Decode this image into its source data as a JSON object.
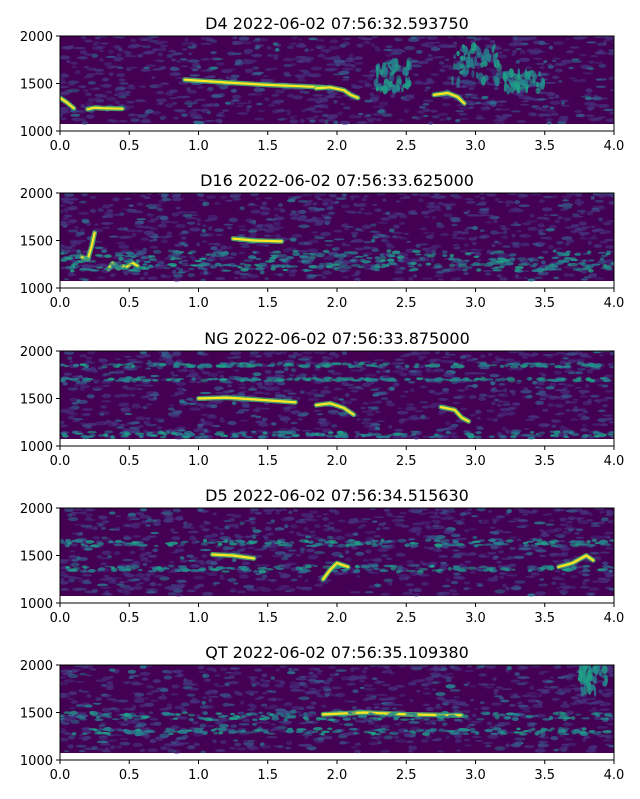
{
  "chart_data": [
    {
      "type": "heatmap",
      "title": "D4 2022-06-02 07:56:32.593750",
      "xlabel": "",
      "ylabel": "",
      "xlim": [
        0.0,
        4.0
      ],
      "ylim": [
        1000,
        2000
      ],
      "x_ticks": [
        "0.0",
        "0.5",
        "1.0",
        "1.5",
        "2.0",
        "2.5",
        "3.0",
        "3.5",
        "4.0"
      ],
      "y_ticks": [
        "1000",
        "1500",
        "2000"
      ],
      "colormap": "viridis",
      "features": [
        {
          "kind": "trace",
          "points": [
            [
              0.2,
              1230
            ],
            [
              0.25,
              1245
            ],
            [
              0.3,
              1240
            ],
            [
              0.45,
              1235
            ]
          ]
        },
        {
          "kind": "trace",
          "points": [
            [
              0.9,
              1540
            ],
            [
              1.2,
              1510
            ],
            [
              1.5,
              1485
            ],
            [
              1.75,
              1470
            ],
            [
              1.9,
              1460
            ]
          ]
        },
        {
          "kind": "trace",
          "points": [
            [
              1.85,
              1450
            ],
            [
              1.95,
              1460
            ],
            [
              2.05,
              1430
            ],
            [
              2.1,
              1380
            ],
            [
              2.15,
              1350
            ]
          ]
        },
        {
          "kind": "trace",
          "points": [
            [
              2.7,
              1380
            ],
            [
              2.8,
              1400
            ],
            [
              2.87,
              1360
            ],
            [
              2.92,
              1290
            ]
          ]
        },
        {
          "kind": "trace",
          "points": [
            [
              0.0,
              1350
            ],
            [
              0.05,
              1300
            ],
            [
              0.1,
              1240
            ]
          ]
        },
        {
          "kind": "blob",
          "x": 2.4,
          "y": 1580,
          "w": 0.25,
          "h": 300
        },
        {
          "kind": "blob",
          "x": 3.0,
          "y": 1700,
          "w": 0.35,
          "h": 400
        },
        {
          "kind": "blob",
          "x": 3.35,
          "y": 1520,
          "w": 0.3,
          "h": 200
        }
      ]
    },
    {
      "type": "heatmap",
      "title": "D16 2022-06-02 07:56:33.625000",
      "xlabel": "",
      "ylabel": "",
      "xlim": [
        0.0,
        4.0
      ],
      "ylim": [
        1000,
        2000
      ],
      "x_ticks": [
        "0.0",
        "0.5",
        "1.0",
        "1.5",
        "2.0",
        "2.5",
        "3.0",
        "3.5",
        "4.0"
      ],
      "y_ticks": [
        "1000",
        "1500",
        "2000"
      ],
      "colormap": "viridis",
      "features": [
        {
          "kind": "trace",
          "points": [
            [
              0.15,
              1330
            ],
            [
              0.2,
              1300
            ],
            [
              0.23,
              1450
            ],
            [
              0.25,
              1580
            ]
          ]
        },
        {
          "kind": "trace",
          "points": [
            [
              0.35,
              1200
            ],
            [
              0.38,
              1260
            ],
            [
              0.42,
              1210
            ],
            [
              0.46,
              1230
            ]
          ]
        },
        {
          "kind": "trace",
          "points": [
            [
              0.48,
              1220
            ],
            [
              0.52,
              1270
            ],
            [
              0.56,
              1230
            ]
          ]
        },
        {
          "kind": "trace",
          "points": [
            [
              1.25,
              1520
            ],
            [
              1.4,
              1500
            ],
            [
              1.6,
              1490
            ]
          ]
        },
        {
          "kind": "band",
          "y": 1330,
          "h": 120
        },
        {
          "kind": "band",
          "y": 1220,
          "h": 80
        }
      ]
    },
    {
      "type": "heatmap",
      "title": "NG 2022-06-02 07:56:33.875000",
      "xlabel": "",
      "ylabel": "",
      "xlim": [
        0.0,
        4.0
      ],
      "ylim": [
        1000,
        2000
      ],
      "x_ticks": [
        "0.0",
        "0.5",
        "1.0",
        "1.5",
        "2.0",
        "2.5",
        "3.0",
        "3.5",
        "4.0"
      ],
      "y_ticks": [
        "1000",
        "1500",
        "2000"
      ],
      "colormap": "viridis",
      "features": [
        {
          "kind": "trace",
          "points": [
            [
              1.0,
              1500
            ],
            [
              1.2,
              1510
            ],
            [
              1.4,
              1490
            ],
            [
              1.7,
              1460
            ]
          ]
        },
        {
          "kind": "trace",
          "points": [
            [
              1.85,
              1430
            ],
            [
              1.95,
              1450
            ],
            [
              2.05,
              1400
            ],
            [
              2.12,
              1330
            ]
          ]
        },
        {
          "kind": "trace",
          "points": [
            [
              2.75,
              1410
            ],
            [
              2.85,
              1380
            ],
            [
              2.9,
              1300
            ],
            [
              2.95,
              1260
            ]
          ]
        },
        {
          "kind": "band",
          "y": 1120,
          "h": 60
        },
        {
          "kind": "band",
          "y": 1850,
          "h": 40
        },
        {
          "kind": "band",
          "y": 1700,
          "h": 30
        }
      ]
    },
    {
      "type": "heatmap",
      "title": "D5 2022-06-02 07:56:34.515630",
      "xlabel": "",
      "ylabel": "",
      "xlim": [
        0.0,
        4.0
      ],
      "ylim": [
        1000,
        2000
      ],
      "x_ticks": [
        "0.0",
        "0.5",
        "1.0",
        "1.5",
        "2.0",
        "2.5",
        "3.0",
        "3.5",
        "4.0"
      ],
      "y_ticks": [
        "1000",
        "1500",
        "2000"
      ],
      "colormap": "viridis",
      "features": [
        {
          "kind": "band",
          "y": 1630,
          "h": 60
        },
        {
          "kind": "band",
          "y": 1360,
          "h": 60
        },
        {
          "kind": "trace",
          "points": [
            [
              1.1,
              1510
            ],
            [
              1.25,
              1500
            ],
            [
              1.4,
              1470
            ]
          ]
        },
        {
          "kind": "trace",
          "points": [
            [
              1.9,
              1250
            ],
            [
              1.95,
              1350
            ],
            [
              2.0,
              1420
            ],
            [
              2.08,
              1380
            ]
          ]
        },
        {
          "kind": "trace",
          "points": [
            [
              3.6,
              1380
            ],
            [
              3.7,
              1420
            ],
            [
              3.8,
              1500
            ],
            [
              3.85,
              1450
            ]
          ]
        }
      ]
    },
    {
      "type": "heatmap",
      "title": "QT 2022-06-02 07:56:35.109380",
      "xlabel": "",
      "ylabel": "",
      "xlim": [
        0.0,
        4.0
      ],
      "ylim": [
        1000,
        2000
      ],
      "x_ticks": [
        "0.0",
        "0.5",
        "1.0",
        "1.5",
        "2.0",
        "2.5",
        "3.0",
        "3.5",
        "4.0"
      ],
      "y_ticks": [
        "1000",
        "1500",
        "2000"
      ],
      "colormap": "viridis",
      "features": [
        {
          "kind": "trace",
          "points": [
            [
              1.9,
              1480
            ],
            [
              2.2,
              1500
            ],
            [
              2.5,
              1480
            ],
            [
              2.9,
              1470
            ]
          ]
        },
        {
          "kind": "band",
          "y": 1460,
          "h": 80
        },
        {
          "kind": "band",
          "y": 1300,
          "h": 60
        },
        {
          "kind": "blob",
          "x": 3.85,
          "y": 1850,
          "w": 0.2,
          "h": 300
        }
      ]
    }
  ]
}
